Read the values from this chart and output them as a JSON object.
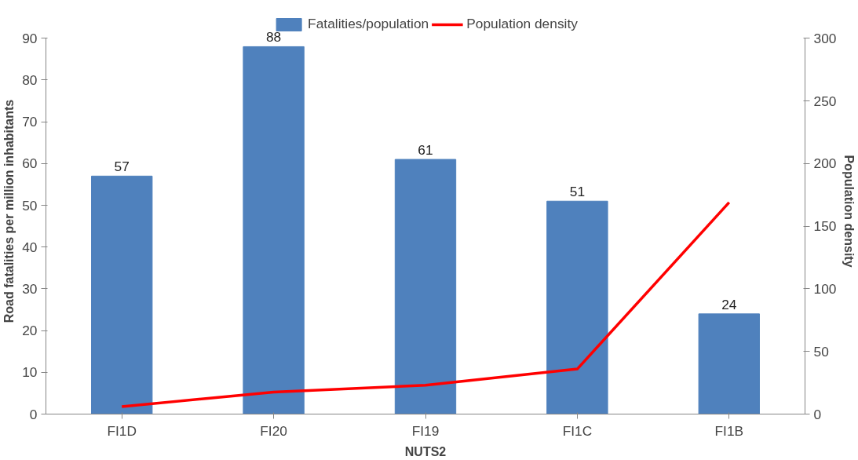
{
  "chart_data": {
    "type": "bar",
    "xlabel": "NUTS2",
    "ylabel": "Road fatalities per million inhabitants",
    "y2label": "Population density",
    "categories": [
      "FI1D",
      "FI20",
      "FI19",
      "FI1C",
      "FI1B"
    ],
    "series": [
      {
        "name": "Fatalities/population",
        "color": "#4f81bd",
        "values": [
          57,
          88,
          61,
          51,
          24
        ],
        "value_labels": [
          "57",
          "88",
          "61",
          "51",
          "24"
        ]
      },
      {
        "name": "Population density",
        "type": "line",
        "axis": "y2",
        "color": "#ff0000",
        "values": [
          6,
          17.5,
          23,
          36,
          169
        ]
      }
    ],
    "ylim": [
      0,
      90
    ],
    "yticks": [
      0,
      10,
      20,
      30,
      40,
      50,
      60,
      70,
      80,
      90
    ],
    "y2lim": [
      0,
      300
    ],
    "y2ticks": [
      0,
      50,
      100,
      150,
      200,
      250,
      300
    ],
    "grid": false,
    "legend": "top",
    "line_style": "solid",
    "marker": "none"
  }
}
